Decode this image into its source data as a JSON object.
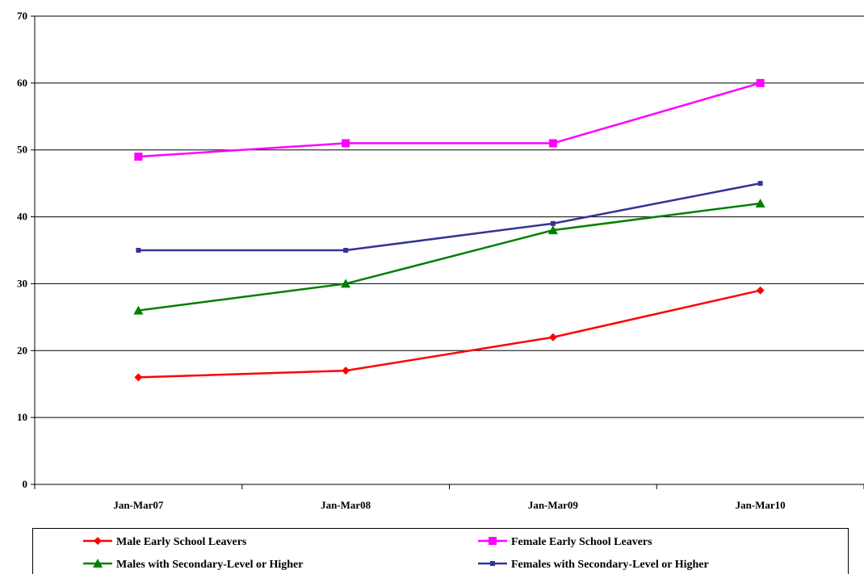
{
  "chart_data": {
    "type": "line",
    "title": "",
    "xlabel": "",
    "ylabel": "",
    "categories": [
      "Jan-Mar07",
      "Jan-Mar08",
      "Jan-Mar09",
      "Jan-Mar10"
    ],
    "ylim": [
      0,
      70
    ],
    "yticks": [
      0,
      10,
      20,
      30,
      40,
      50,
      60,
      70
    ],
    "grid": true,
    "legend_position": "bottom",
    "series": [
      {
        "name": "Male Early School Leavers",
        "values": [
          16,
          17,
          22,
          29
        ],
        "color": "#ff0000",
        "marker": "diamond"
      },
      {
        "name": "Female Early School Leavers",
        "values": [
          49,
          51,
          51,
          60
        ],
        "color": "#ff00ff",
        "marker": "square"
      },
      {
        "name": "Males with Secondary-Level or Higher",
        "values": [
          26,
          30,
          38,
          42
        ],
        "color": "#008000",
        "marker": "triangle"
      },
      {
        "name": "Females with Secondary-Level or Higher",
        "values": [
          35,
          35,
          39,
          45
        ],
        "color": "#333399",
        "marker": "small-square"
      }
    ]
  }
}
